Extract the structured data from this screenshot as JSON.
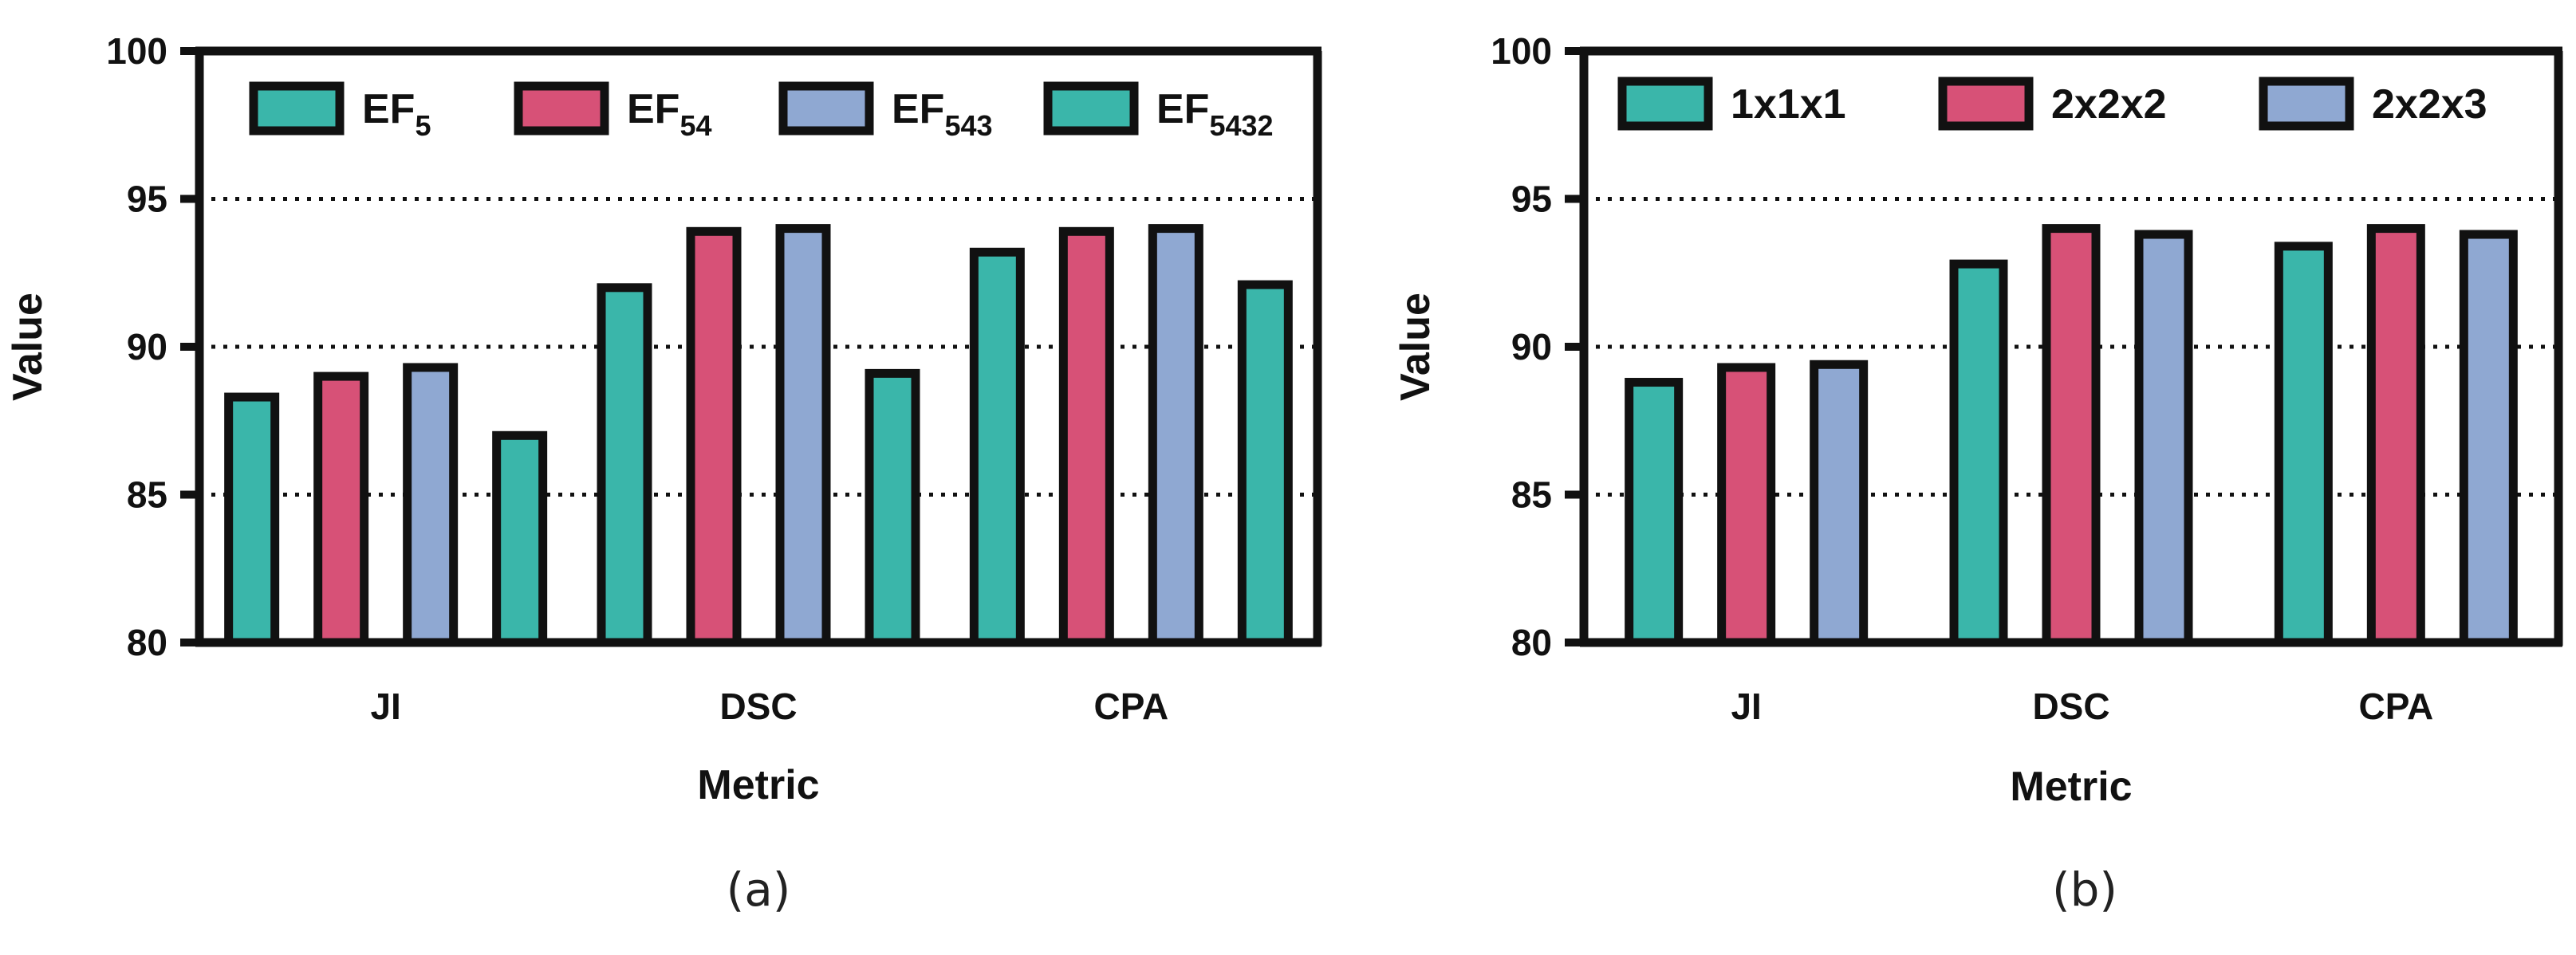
{
  "chart_data": [
    {
      "type": "bar",
      "panel_label": "(a)",
      "xlabel": "Metric",
      "ylabel": "Value",
      "ylim": [
        80,
        100
      ],
      "yticks": [
        80,
        85,
        90,
        95,
        100
      ],
      "gridlines": [
        85,
        90,
        95
      ],
      "categories": [
        "JI",
        "DSC",
        "CPA"
      ],
      "legend_position": "top",
      "series": [
        {
          "name": "EF5",
          "base": "EF",
          "sub": "5",
          "color": "#3ab6aa",
          "values": [
            88.3,
            92.0,
            93.2
          ]
        },
        {
          "name": "EF54",
          "base": "EF",
          "sub": "54",
          "color": "#d75177",
          "values": [
            89.0,
            93.9,
            93.9
          ]
        },
        {
          "name": "EF543",
          "base": "EF",
          "sub": "543",
          "color": "#8fa8d2",
          "values": [
            89.3,
            94.0,
            94.0
          ]
        },
        {
          "name": "EF5432",
          "base": "EF",
          "sub": "5432",
          "color": "#3ab6aa",
          "values": [
            87.0,
            89.1,
            92.1
          ]
        }
      ]
    },
    {
      "type": "bar",
      "panel_label": "(b)",
      "xlabel": "Metric",
      "ylabel": "Value",
      "ylim": [
        80,
        100
      ],
      "yticks": [
        80,
        85,
        90,
        95,
        100
      ],
      "gridlines": [
        85,
        90,
        95
      ],
      "categories": [
        "JI",
        "DSC",
        "CPA"
      ],
      "legend_position": "top",
      "series": [
        {
          "name": "1x1x1",
          "base": "1x1x1",
          "sub": "",
          "color": "#3ab6aa",
          "values": [
            88.8,
            92.8,
            93.4
          ]
        },
        {
          "name": "2x2x2",
          "base": "2x2x2",
          "sub": "",
          "color": "#d75177",
          "values": [
            89.3,
            94.0,
            94.0
          ]
        },
        {
          "name": "2x2x3",
          "base": "2x2x3",
          "sub": "",
          "color": "#8fa8d2",
          "values": [
            89.4,
            93.8,
            93.8
          ]
        }
      ]
    }
  ]
}
